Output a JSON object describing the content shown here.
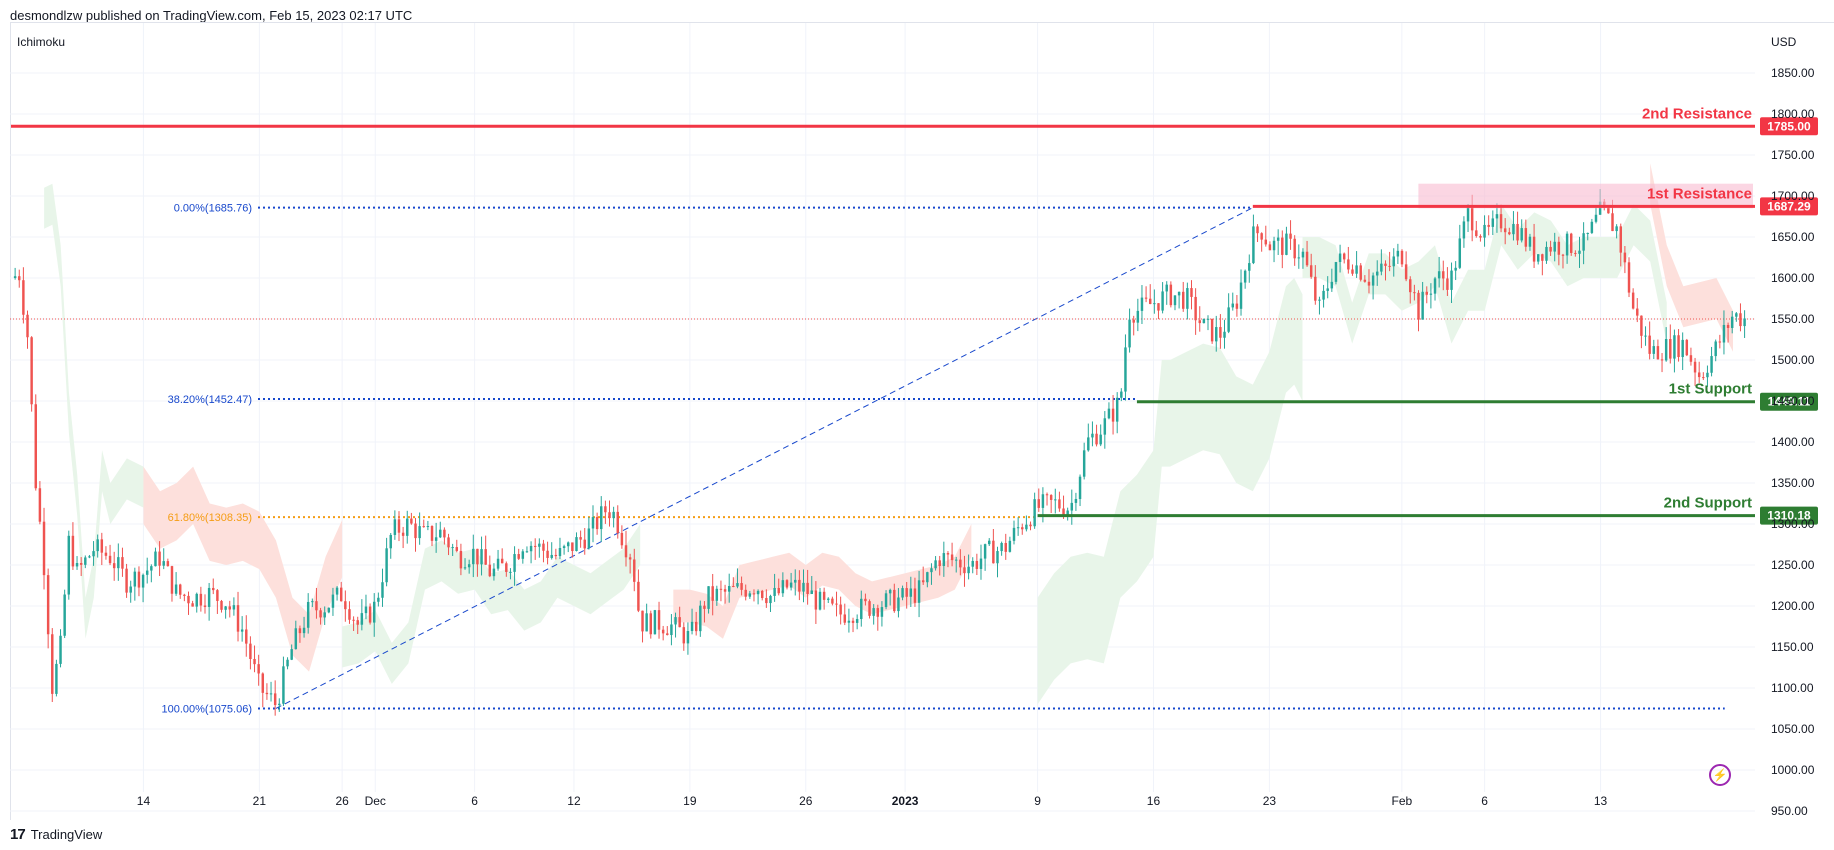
{
  "header": {
    "published": "desmondlzw published on TradingView.com, Feb 15, 2023 02:17 UTC"
  },
  "indicator": "Ichimoku",
  "currency": "USD",
  "footer": {
    "brand": "TradingView",
    "logo": "17"
  },
  "colors": {
    "up": "#26a69a",
    "down": "#ef5350",
    "resistance": "#f23645",
    "support": "#2e7d32",
    "fib": "#1848cc",
    "fib618": "#f59d15",
    "cloud_up": "#e8f5e9",
    "cloud_down": "#fde0dc"
  },
  "chart_data": {
    "type": "candlestick",
    "y_axis": {
      "ticks": [
        950,
        1000,
        1050,
        1100,
        1150,
        1200,
        1250,
        1300,
        1350,
        1400,
        1450,
        1500,
        1550,
        1600,
        1650,
        1700,
        1750,
        1800,
        1850
      ],
      "tick_labels": [
        "950.00",
        "1000.00",
        "1050.00",
        "1100.00",
        "1150.00",
        "1200.00",
        "1250.00",
        "1300.00",
        "1350.00",
        "1400.00",
        "1450.00",
        "1500.00",
        "1550.00",
        "1600.00",
        "1650.00",
        "1700.00",
        "1750.00",
        "1800.00",
        "1850.00"
      ],
      "range": [
        900,
        1900
      ]
    },
    "x_axis": {
      "labels": [
        {
          "t": 14,
          "label": "14",
          "bold": false
        },
        {
          "t": 21,
          "label": "21",
          "bold": false
        },
        {
          "t": 26,
          "label": "26",
          "bold": false
        },
        {
          "t": 28,
          "label": "Dec",
          "bold": false
        },
        {
          "t": 34,
          "label": "6",
          "bold": false
        },
        {
          "t": 40,
          "label": "12",
          "bold": false
        },
        {
          "t": 47,
          "label": "19",
          "bold": false
        },
        {
          "t": 54,
          "label": "26",
          "bold": false
        },
        {
          "t": 60,
          "label": "2023",
          "bold": true
        },
        {
          "t": 68,
          "label": "9",
          "bold": false
        },
        {
          "t": 75,
          "label": "16",
          "bold": false
        },
        {
          "t": 82,
          "label": "23",
          "bold": false
        },
        {
          "t": 90,
          "label": "Feb",
          "bold": false
        },
        {
          "t": 95,
          "label": "6",
          "bold": false
        },
        {
          "t": 102,
          "label": "13",
          "bold": false
        }
      ],
      "range": [
        6,
        110
      ]
    },
    "price_path": [
      [
        6,
        1600
      ],
      [
        6.5,
        1605
      ],
      [
        7,
        1530
      ],
      [
        7.5,
        1350
      ],
      [
        8,
        1250
      ],
      [
        8.5,
        1100
      ],
      [
        9,
        1150
      ],
      [
        9.5,
        1280
      ],
      [
        10,
        1240
      ],
      [
        11,
        1270
      ],
      [
        12,
        1260
      ],
      [
        13,
        1230
      ],
      [
        14,
        1240
      ],
      [
        15,
        1260
      ],
      [
        16,
        1215
      ],
      [
        17,
        1210
      ],
      [
        18,
        1215
      ],
      [
        19,
        1205
      ],
      [
        20,
        1170
      ],
      [
        21,
        1100
      ],
      [
        21.5,
        1090
      ],
      [
        22,
        1080
      ],
      [
        23,
        1150
      ],
      [
        24,
        1195
      ],
      [
        25,
        1200
      ],
      [
        26,
        1215
      ],
      [
        27,
        1175
      ],
      [
        28,
        1200
      ],
      [
        29,
        1290
      ],
      [
        30,
        1300
      ],
      [
        31,
        1285
      ],
      [
        32,
        1290
      ],
      [
        33,
        1260
      ],
      [
        34,
        1265
      ],
      [
        35,
        1240
      ],
      [
        36,
        1250
      ],
      [
        37,
        1280
      ],
      [
        38,
        1270
      ],
      [
        39,
        1260
      ],
      [
        40,
        1275
      ],
      [
        41,
        1290
      ],
      [
        42,
        1320
      ],
      [
        42.5,
        1310
      ],
      [
        43,
        1280
      ],
      [
        43.5,
        1260
      ],
      [
        44,
        1180
      ],
      [
        45,
        1180
      ],
      [
        46,
        1175
      ],
      [
        47,
        1160
      ],
      [
        48,
        1210
      ],
      [
        49,
        1215
      ],
      [
        50,
        1220
      ],
      [
        51,
        1225
      ],
      [
        52,
        1210
      ],
      [
        53,
        1225
      ],
      [
        54,
        1220
      ],
      [
        55,
        1200
      ],
      [
        56,
        1190
      ],
      [
        57,
        1195
      ],
      [
        58,
        1200
      ],
      [
        59,
        1205
      ],
      [
        60,
        1210
      ],
      [
        61,
        1220
      ],
      [
        62,
        1260
      ],
      [
        63,
        1255
      ],
      [
        64,
        1250
      ],
      [
        65,
        1265
      ],
      [
        66,
        1270
      ],
      [
        67,
        1300
      ],
      [
        68,
        1320
      ],
      [
        69,
        1325
      ],
      [
        70,
        1320
      ],
      [
        71,
        1400
      ],
      [
        72,
        1420
      ],
      [
        73,
        1450
      ],
      [
        73.5,
        1560
      ],
      [
        74,
        1560
      ],
      [
        75,
        1570
      ],
      [
        76,
        1580
      ],
      [
        77,
        1575
      ],
      [
        78,
        1540
      ],
      [
        79,
        1530
      ],
      [
        80,
        1570
      ],
      [
        81,
        1650
      ],
      [
        81.5,
        1660
      ],
      [
        82,
        1640
      ],
      [
        83,
        1640
      ],
      [
        84,
        1630
      ],
      [
        85,
        1560
      ],
      [
        86,
        1620
      ],
      [
        87,
        1620
      ],
      [
        88,
        1600
      ],
      [
        89,
        1610
      ],
      [
        90,
        1630
      ],
      [
        91,
        1560
      ],
      [
        92,
        1600
      ],
      [
        93,
        1600
      ],
      [
        94,
        1680
      ],
      [
        95,
        1650
      ],
      [
        96,
        1670
      ],
      [
        97,
        1660
      ],
      [
        98,
        1630
      ],
      [
        99,
        1640
      ],
      [
        100,
        1640
      ],
      [
        101,
        1640
      ],
      [
        102,
        1680
      ],
      [
        103,
        1660
      ],
      [
        104,
        1560
      ],
      [
        105,
        1510
      ],
      [
        106,
        1515
      ],
      [
        107,
        1520
      ],
      [
        108,
        1480
      ],
      [
        109,
        1515
      ],
      [
        110,
        1555
      ],
      [
        110.7,
        1550
      ]
    ],
    "fibonacci": [
      {
        "level": "0.00%(1685.76)",
        "price": 1685.76,
        "color": "fib"
      },
      {
        "level": "38.20%(1452.47)",
        "price": 1452.47,
        "color": "fib"
      },
      {
        "level": "61.80%(1308.35)",
        "price": 1308.35,
        "color": "fib618"
      },
      {
        "level": "100.00%(1075.06)",
        "price": 1075.06,
        "color": "fib"
      }
    ],
    "trend_line": {
      "from": [
        22,
        1075.06
      ],
      "to": [
        81,
        1685.76
      ]
    },
    "last_price": 1550,
    "levels": [
      {
        "name": "2nd Resistance",
        "price": 1785.0,
        "label": "1785.00",
        "kind": "resistance",
        "from_t": 6
      },
      {
        "name": "1st Resistance",
        "price": 1687.29,
        "label": "1687.29",
        "kind": "resistance",
        "from_t": 81
      },
      {
        "name": "1st Support",
        "price": 1449.11,
        "label": "1449.11",
        "kind": "support",
        "from_t": 74
      },
      {
        "name": "2nd Support",
        "price": 1310.18,
        "label": "1310.18",
        "kind": "support",
        "from_t": 68
      }
    ],
    "resistance_zone": {
      "from_t": 91,
      "to_t": 110,
      "low": 1685,
      "high": 1715
    }
  }
}
